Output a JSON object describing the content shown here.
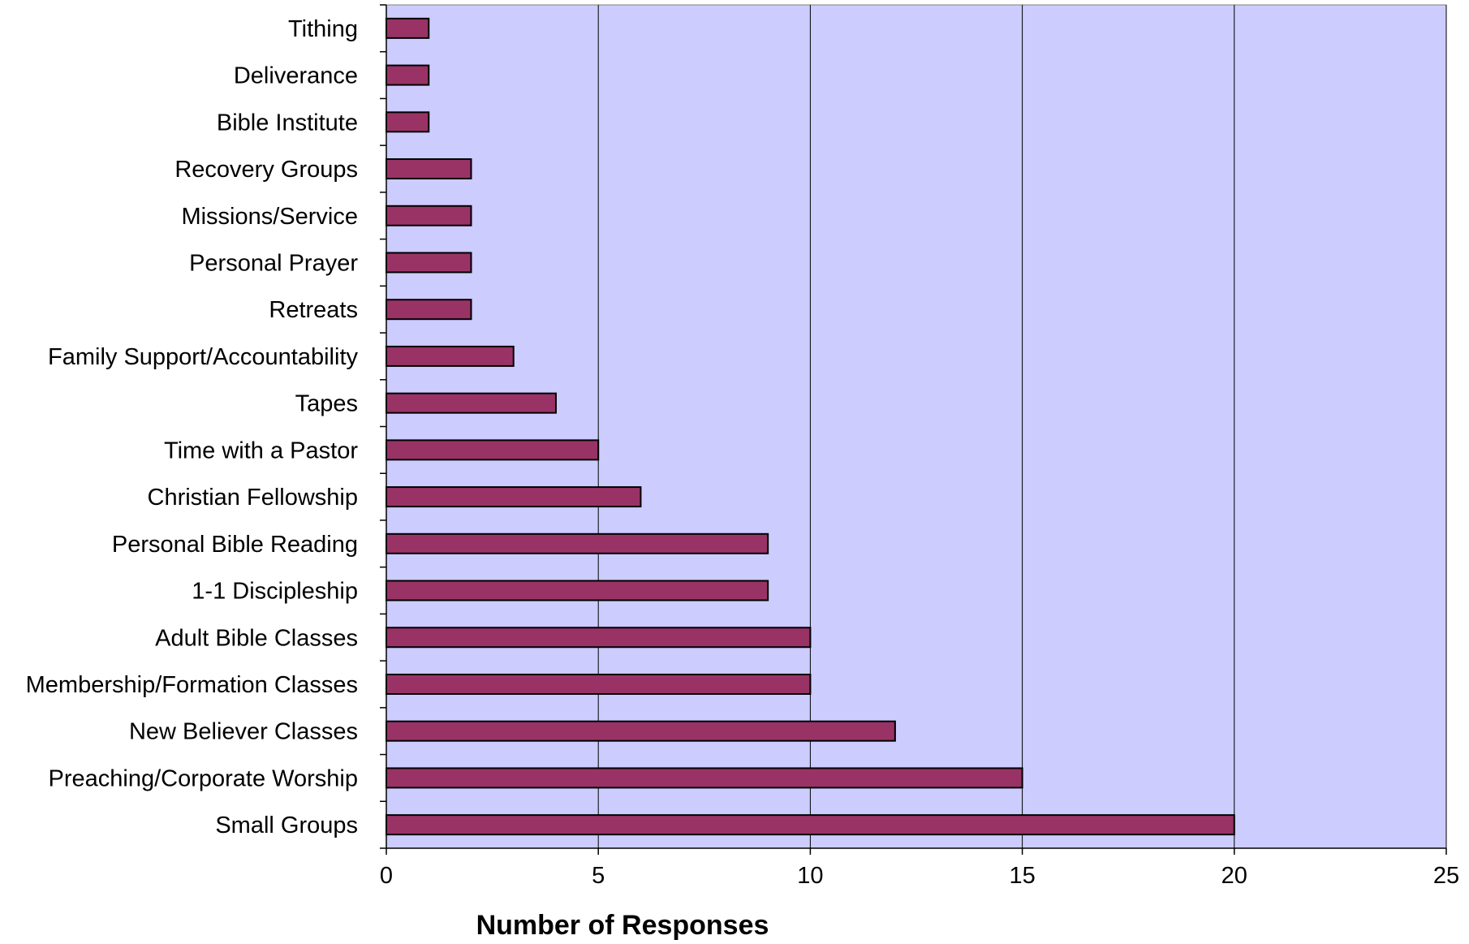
{
  "chart_data": {
    "type": "bar",
    "orientation": "horizontal",
    "categories": [
      "Tithing",
      "Deliverance",
      "Bible Institute",
      "Recovery Groups",
      "Missions/Service",
      "Personal Prayer",
      "Retreats",
      "Family Support/Accountability",
      "Tapes",
      "Time with a Pastor",
      "Christian Fellowship",
      "Personal Bible Reading",
      "1-1 Discipleship",
      "Adult Bible Classes",
      "Membership/Formation Classes",
      "New Believer Classes",
      "Preaching/Corporate Worship",
      "Small Groups"
    ],
    "values": [
      1,
      1,
      1,
      2,
      2,
      2,
      2,
      3,
      4,
      5,
      6,
      9,
      9,
      10,
      10,
      12,
      15,
      20
    ],
    "xlabel": "Number of Responses",
    "ylabel": "",
    "xlim": [
      0,
      25
    ],
    "xticks": [
      "0",
      "5",
      "10",
      "15",
      "20",
      "25"
    ],
    "grid": "vertical",
    "legend": "none",
    "colors": {
      "plot_background": "#ccccff",
      "bar_fill": "#993366",
      "bar_stroke": "#000000",
      "gridline": "#000000"
    }
  }
}
